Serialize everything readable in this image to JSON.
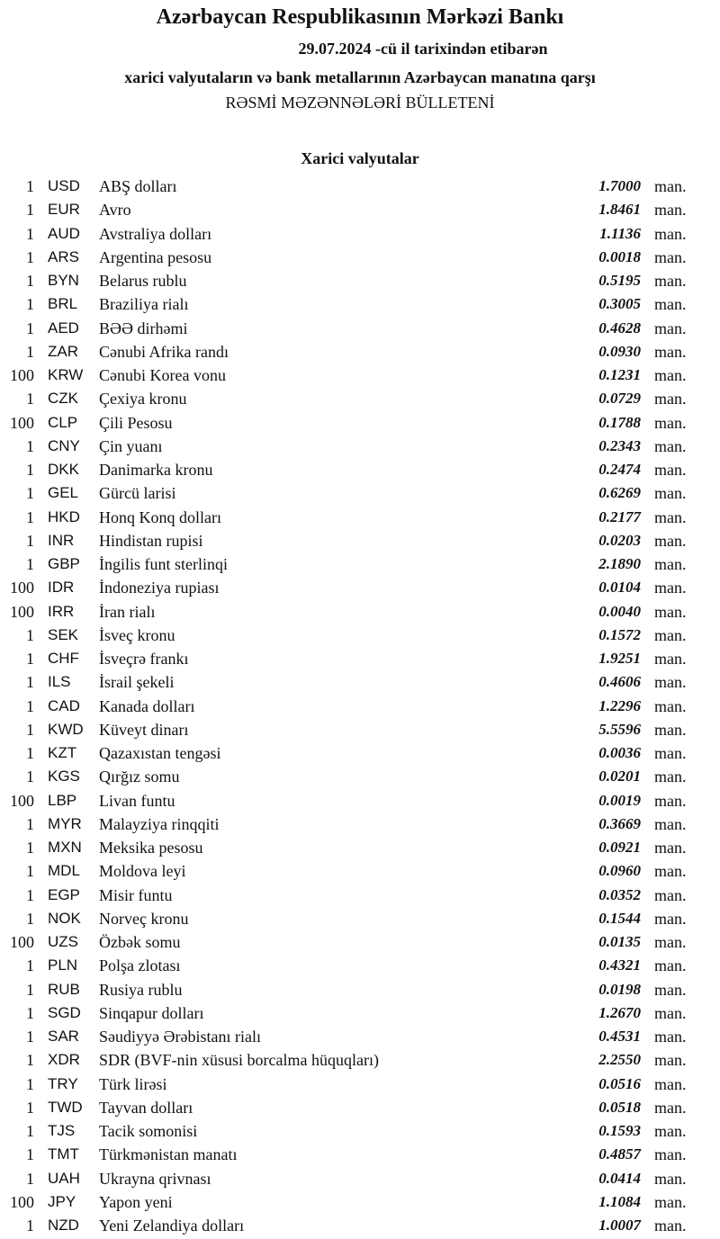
{
  "header": {
    "title": "Azərbaycan Respublikasının Mərkəzi Bankı",
    "date_line": "29.07.2024  -cü il tarixindən etibarən",
    "subtitle": "xarici valyutaların və bank metallarının Azərbaycan manatına qarşı",
    "bulletin": "RƏSMİ MƏZƏNNƏLƏRİ BÜLLETENİ"
  },
  "section_title": "Xarici valyutalar",
  "unit": "man.",
  "rows": [
    {
      "amount": "1",
      "code": "USD",
      "name": "ABŞ dolları",
      "rate": "1.7000"
    },
    {
      "amount": "1",
      "code": "EUR",
      "name": "Avro",
      "rate": "1.8461"
    },
    {
      "amount": "1",
      "code": "AUD",
      "name": "Avstraliya dolları",
      "rate": "1.1136"
    },
    {
      "amount": "1",
      "code": "ARS",
      "name": "Argentina pesosu",
      "rate": "0.0018"
    },
    {
      "amount": "1",
      "code": "BYN",
      "name": "Belarus rublu",
      "rate": "0.5195"
    },
    {
      "amount": "1",
      "code": "BRL",
      "name": "Braziliya rialı",
      "rate": "0.3005"
    },
    {
      "amount": "1",
      "code": "AED",
      "name": "BƏƏ dirhəmi",
      "rate": "0.4628"
    },
    {
      "amount": "1",
      "code": "ZAR",
      "name": "Cənubi Afrika randı",
      "rate": "0.0930"
    },
    {
      "amount": "100",
      "code": "KRW",
      "name": "Cənubi Korea vonu",
      "rate": "0.1231"
    },
    {
      "amount": "1",
      "code": "CZK",
      "name": "Çexiya kronu",
      "rate": "0.0729"
    },
    {
      "amount": "100",
      "code": "CLP",
      "name": "Çili Pesosu",
      "rate": "0.1788"
    },
    {
      "amount": "1",
      "code": "CNY",
      "name": "Çin yuanı",
      "rate": "0.2343"
    },
    {
      "amount": "1",
      "code": "DKK",
      "name": "Danimarka kronu",
      "rate": "0.2474"
    },
    {
      "amount": "1",
      "code": "GEL",
      "name": "Gürcü larisi",
      "rate": "0.6269"
    },
    {
      "amount": "1",
      "code": "HKD",
      "name": "Honq Konq dolları",
      "rate": "0.2177"
    },
    {
      "amount": "1",
      "code": "INR",
      "name": "Hindistan rupisi",
      "rate": "0.0203"
    },
    {
      "amount": "1",
      "code": "GBP",
      "name": "İngilis funt sterlinqi",
      "rate": "2.1890"
    },
    {
      "amount": "100",
      "code": "IDR",
      "name": "İndoneziya rupiası",
      "rate": "0.0104"
    },
    {
      "amount": "100",
      "code": "IRR",
      "name": "İran rialı",
      "rate": "0.0040"
    },
    {
      "amount": "1",
      "code": "SEK",
      "name": "İsveç kronu",
      "rate": "0.1572"
    },
    {
      "amount": "1",
      "code": "CHF",
      "name": "İsveçrə frankı",
      "rate": "1.9251"
    },
    {
      "amount": "1",
      "code": "ILS",
      "name": "İsrail şekeli",
      "rate": "0.4606"
    },
    {
      "amount": "1",
      "code": "CAD",
      "name": "Kanada dolları",
      "rate": "1.2296"
    },
    {
      "amount": "1",
      "code": "KWD",
      "name": "Küveyt dinarı",
      "rate": "5.5596"
    },
    {
      "amount": "1",
      "code": "KZT",
      "name": "Qazaxıstan tengəsi",
      "rate": "0.0036"
    },
    {
      "amount": "1",
      "code": "KGS",
      "name": "Qırğız somu",
      "rate": "0.0201"
    },
    {
      "amount": "100",
      "code": "LBP",
      "name": "Livan funtu",
      "rate": "0.0019"
    },
    {
      "amount": "1",
      "code": "MYR",
      "name": "Malayziya rinqqiti",
      "rate": "0.3669"
    },
    {
      "amount": "1",
      "code": "MXN",
      "name": "Meksika pesosu",
      "rate": "0.0921"
    },
    {
      "amount": "1",
      "code": "MDL",
      "name": "Moldova leyi",
      "rate": "0.0960"
    },
    {
      "amount": "1",
      "code": "EGP",
      "name": "Misir funtu",
      "rate": "0.0352"
    },
    {
      "amount": "1",
      "code": "NOK",
      "name": "Norveç kronu",
      "rate": "0.1544"
    },
    {
      "amount": "100",
      "code": "UZS",
      "name": "Özbək somu",
      "rate": "0.0135"
    },
    {
      "amount": "1",
      "code": "PLN",
      "name": "Polşa zlotası",
      "rate": "0.4321"
    },
    {
      "amount": "1",
      "code": "RUB",
      "name": "Rusiya rublu",
      "rate": "0.0198"
    },
    {
      "amount": "1",
      "code": "SGD",
      "name": "Sinqapur dolları",
      "rate": "1.2670"
    },
    {
      "amount": "1",
      "code": "SAR",
      "name": "Səudiyyə Ərəbistanı rialı",
      "rate": "0.4531"
    },
    {
      "amount": "1",
      "code": "XDR",
      "name": "SDR (BVF-nin xüsusi borcalma hüquqları)",
      "rate": "2.2550"
    },
    {
      "amount": "1",
      "code": "TRY",
      "name": "Türk lirəsi",
      "rate": "0.0516"
    },
    {
      "amount": "1",
      "code": "TWD",
      "name": "Tayvan dolları",
      "rate": "0.0518"
    },
    {
      "amount": "1",
      "code": "TJS",
      "name": "Tacik somonisi",
      "rate": "0.1593"
    },
    {
      "amount": "1",
      "code": "TMT",
      "name": "Türkmənistan manatı",
      "rate": "0.4857"
    },
    {
      "amount": "1",
      "code": "UAH",
      "name": "Ukrayna qrivnası",
      "rate": "0.0414"
    },
    {
      "amount": "100",
      "code": "JPY",
      "name": "Yapon yeni",
      "rate": "1.1084"
    },
    {
      "amount": "1",
      "code": "NZD",
      "name": "Yeni Zelandiya dolları",
      "rate": "1.0007"
    }
  ]
}
